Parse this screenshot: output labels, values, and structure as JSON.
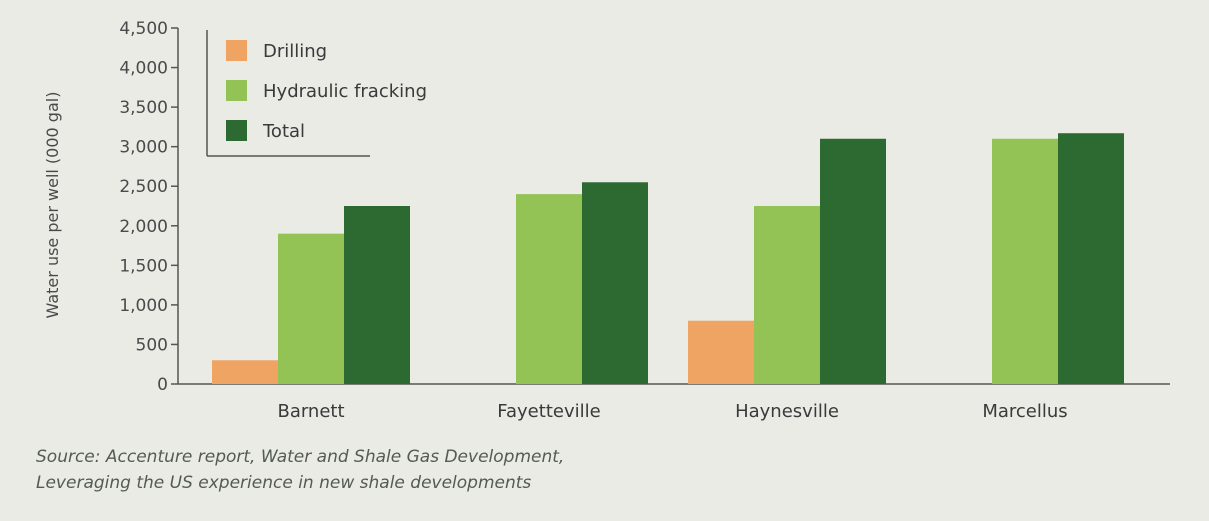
{
  "chart_data": {
    "type": "bar",
    "categories": [
      "Barnett",
      "Fayetteville",
      "Haynesville",
      "Marcellus"
    ],
    "series": [
      {
        "name": "Drilling",
        "color": "#f0a463",
        "values": [
          300,
          0,
          800,
          0
        ]
      },
      {
        "name": "Hydraulic fracking",
        "color": "#93c354",
        "values": [
          1900,
          2400,
          2250,
          3100
        ]
      },
      {
        "name": "Total",
        "color": "#2d6a32",
        "values": [
          2250,
          2550,
          3100,
          3170
        ]
      }
    ],
    "ylabel": "Water use per well (000 gal)",
    "ylim": [
      0,
      4500
    ],
    "yticks": [
      "0",
      "500",
      "1,000",
      "1,500",
      "2,000",
      "2,500",
      "3,000",
      "3,500",
      "4,000",
      "4,500"
    ],
    "grid": false,
    "legend": "top-left"
  },
  "source": {
    "line1": "Source: Accenture report, Water and Shale Gas Development,",
    "line2": "Leveraging the US experience in new shale developments"
  }
}
